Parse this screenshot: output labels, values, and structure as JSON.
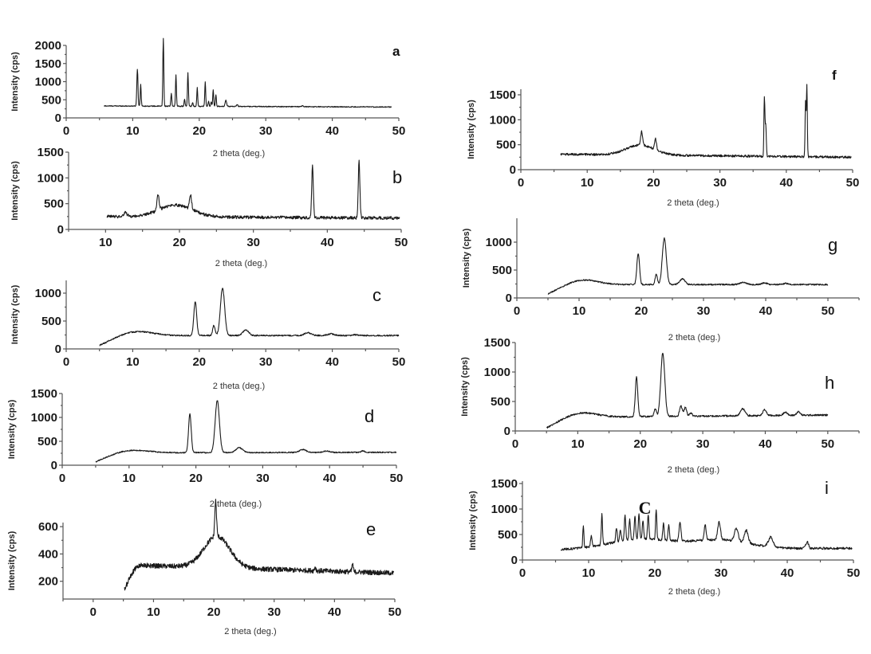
{
  "chart_data": [
    {
      "id": "a",
      "type": "line",
      "panel_label": "a",
      "xlabel": "2 theta (deg.)",
      "ylabel": "Intensity (cps)",
      "xlim": [
        0,
        50
      ],
      "ylim": [
        0,
        2000
      ],
      "xticks": [
        0,
        10,
        20,
        30,
        40,
        50
      ],
      "yticks": [
        0,
        500,
        1000,
        1500,
        2000
      ],
      "baseline": 330,
      "x_start": 5.7,
      "x_end": 48.9,
      "baseline_end": 300,
      "noise": 12,
      "peaks": [
        [
          10.7,
          1350,
          0.12
        ],
        [
          11.2,
          930,
          0.1
        ],
        [
          14.6,
          2200,
          0.1
        ],
        [
          15.8,
          680,
          0.1
        ],
        [
          16.5,
          1200,
          0.1
        ],
        [
          17.8,
          520,
          0.1
        ],
        [
          18.3,
          1260,
          0.1
        ],
        [
          19.0,
          430,
          0.1
        ],
        [
          19.7,
          840,
          0.1
        ],
        [
          20.9,
          1000,
          0.1
        ],
        [
          21.4,
          480,
          0.1
        ],
        [
          21.8,
          450,
          0.1
        ],
        [
          22.1,
          780,
          0.1
        ],
        [
          22.5,
          640,
          0.1
        ],
        [
          24.0,
          500,
          0.15
        ],
        [
          25.7,
          380,
          0.15
        ],
        [
          35.5,
          350,
          0.2
        ]
      ],
      "humps": []
    },
    {
      "id": "b",
      "type": "line",
      "panel_label": "b",
      "xlabel": "2 theta (deg.)",
      "ylabel": "Intensity (cps)",
      "xlim": [
        5,
        50
      ],
      "ylim": [
        0,
        1500
      ],
      "xticks": [
        10,
        20,
        30,
        40,
        50
      ],
      "yticks": [
        0,
        500,
        1000,
        1500
      ],
      "baseline": 250,
      "x_start": 10.2,
      "x_end": 49.8,
      "baseline_end": 220,
      "noise": 30,
      "peaks": [
        [
          38.0,
          1270,
          0.15
        ],
        [
          44.3,
          1370,
          0.15
        ],
        [
          17.1,
          560,
          0.2
        ],
        [
          21.5,
          520,
          0.2
        ],
        [
          12.7,
          330,
          0.3
        ]
      ],
      "humps": [
        [
          19.5,
          230,
          3.2
        ]
      ]
    },
    {
      "id": "c",
      "type": "line",
      "panel_label": "c",
      "xlabel": "2 theta (deg.)",
      "ylabel": "Intensity (cps)",
      "xlim": [
        0,
        50
      ],
      "ylim": [
        0,
        1200
      ],
      "xticks": [
        0,
        10,
        20,
        30,
        40,
        50
      ],
      "yticks": [
        0,
        500,
        1000
      ],
      "baseline": 240,
      "x_start": 5.0,
      "x_end": 50.0,
      "baseline_end": 240,
      "noise": 12,
      "start_value": 60,
      "rise_to": 10,
      "peaks": [
        [
          19.4,
          850,
          0.3
        ],
        [
          22.2,
          420,
          0.25
        ],
        [
          23.5,
          1090,
          0.45
        ],
        [
          27.0,
          340,
          0.6
        ],
        [
          36.3,
          290,
          0.7
        ],
        [
          39.8,
          270,
          0.7
        ],
        [
          43.4,
          255,
          0.6
        ]
      ],
      "humps": [
        [
          11.0,
          70,
          3.0
        ]
      ]
    },
    {
      "id": "d",
      "type": "line",
      "panel_label": "d",
      "xlabel": "2 theta (deg.)",
      "ylabel": "Intensity (cps)",
      "xlim": [
        0,
        50
      ],
      "ylim": [
        0,
        1500
      ],
      "xticks": [
        0,
        10,
        20,
        30,
        40,
        50
      ],
      "yticks": [
        0,
        500,
        1000,
        1500
      ],
      "baseline": 260,
      "x_start": 5.0,
      "x_end": 50.0,
      "baseline_end": 270,
      "noise": 12,
      "start_value": 70,
      "rise_to": 10,
      "peaks": [
        [
          19.1,
          1070,
          0.28
        ],
        [
          23.2,
          1350,
          0.45
        ],
        [
          26.5,
          360,
          0.7
        ],
        [
          36.0,
          320,
          0.7
        ],
        [
          39.6,
          290,
          0.6
        ],
        [
          45.0,
          290,
          0.4
        ]
      ],
      "humps": [
        [
          11.0,
          50,
          3.0
        ]
      ]
    },
    {
      "id": "e",
      "type": "line",
      "panel_label": "e",
      "xlabel": "2 theta (deg.)",
      "ylabel": "Intensity (cps)",
      "xlim": [
        -5,
        50
      ],
      "ylim": [
        70,
        630
      ],
      "xticks": [
        0,
        10,
        20,
        30,
        40,
        50
      ],
      "yticks": [
        200,
        400,
        600
      ],
      "baseline": 320,
      "x_start": 5.2,
      "x_end": 49.8,
      "baseline_end": 260,
      "noise": 18,
      "start_value": 140,
      "rise_to": 8,
      "peaks": [
        [
          20.3,
          580,
          0.2
        ],
        [
          36.8,
          350,
          0.15
        ],
        [
          43.0,
          380,
          0.15
        ]
      ],
      "humps": [
        [
          20.5,
          230,
          3.0
        ]
      ]
    },
    {
      "id": "f",
      "type": "line",
      "panel_label": "f",
      "xlabel": "2 theta (deg.)",
      "ylabel": "Intensity (cps)",
      "xlim": [
        0,
        50
      ],
      "ylim": [
        0,
        1500
      ],
      "xticks": [
        0,
        10,
        20,
        30,
        40,
        50
      ],
      "yticks": [
        0,
        500,
        1000,
        1500
      ],
      "baseline": 310,
      "x_start": 6.0,
      "x_end": 49.8,
      "baseline_end": 250,
      "noise": 22,
      "peaks": [
        [
          36.7,
          1480,
          0.1
        ],
        [
          36.9,
          950,
          0.12
        ],
        [
          42.9,
          1400,
          0.1
        ],
        [
          43.1,
          1720,
          0.1
        ],
        [
          18.2,
          580,
          0.2
        ],
        [
          20.3,
          530,
          0.2
        ]
      ],
      "humps": [
        [
          18.0,
          200,
          3.0
        ]
      ]
    },
    {
      "id": "g",
      "type": "line",
      "panel_label": "g",
      "xlabel": "2 theta (deg.)",
      "ylabel": "Intensity (cps)",
      "xlim": [
        0,
        55
      ],
      "ylim": [
        0,
        1200
      ],
      "xticks": [
        0,
        10,
        20,
        30,
        40,
        50
      ],
      "yticks": [
        0,
        500,
        1000
      ],
      "baseline": 240,
      "x_start": 5.0,
      "x_end": 50.0,
      "baseline_end": 240,
      "noise": 12,
      "start_value": 70,
      "rise_to": 10,
      "peaks": [
        [
          19.5,
          800,
          0.3
        ],
        [
          22.4,
          430,
          0.25
        ],
        [
          23.7,
          1070,
          0.45
        ],
        [
          26.6,
          340,
          0.6
        ],
        [
          36.4,
          280,
          0.7
        ],
        [
          39.8,
          270,
          0.6
        ],
        [
          43.2,
          260,
          0.5
        ]
      ],
      "humps": [
        [
          11.0,
          80,
          3.0
        ]
      ]
    },
    {
      "id": "h",
      "type": "line",
      "panel_label": "h",
      "xlabel": "2 theta (deg.)",
      "ylabel": "Intensity (cps)",
      "xlim": [
        0,
        55
      ],
      "ylim": [
        0,
        1500
      ],
      "xticks": [
        0,
        10,
        20,
        30,
        40,
        50
      ],
      "yticks": [
        0,
        500,
        1000,
        1500
      ],
      "baseline": 230,
      "x_start": 5.0,
      "x_end": 50.0,
      "baseline_end": 270,
      "noise": 14,
      "start_value": 50,
      "rise_to": 10,
      "peaks": [
        [
          19.4,
          900,
          0.28
        ],
        [
          22.4,
          360,
          0.25
        ],
        [
          23.6,
          1310,
          0.45
        ],
        [
          26.5,
          400,
          0.3
        ],
        [
          27.2,
          380,
          0.3
        ],
        [
          28.1,
          280,
          0.3
        ],
        [
          36.4,
          350,
          0.5
        ],
        [
          39.9,
          330,
          0.4
        ],
        [
          43.2,
          290,
          0.4
        ],
        [
          45.3,
          290,
          0.4
        ]
      ],
      "humps": [
        [
          11.0,
          70,
          3.0
        ]
      ]
    },
    {
      "id": "i",
      "type": "line",
      "panel_label": "i",
      "xlabel": "2 theta (deg.)",
      "ylabel": "Intensity (cps)",
      "annotation": "C",
      "xlim": [
        0,
        50
      ],
      "ylim": [
        0,
        1500
      ],
      "xticks": [
        0,
        10,
        20,
        30,
        40,
        50
      ],
      "yticks": [
        0,
        500,
        1000,
        1500
      ],
      "baseline": 200,
      "x_start": 5.8,
      "x_end": 49.8,
      "baseline_end": 230,
      "noise": 22,
      "peaks": [
        [
          9.2,
          610,
          0.12
        ],
        [
          10.4,
          420,
          0.15
        ],
        [
          12.0,
          800,
          0.13
        ],
        [
          14.2,
          480,
          0.15
        ],
        [
          14.8,
          430,
          0.15
        ],
        [
          15.5,
          690,
          0.15
        ],
        [
          16.2,
          600,
          0.15
        ],
        [
          17.0,
          660,
          0.15
        ],
        [
          17.6,
          700,
          0.15
        ],
        [
          18.2,
          560,
          0.15
        ],
        [
          19.0,
          680,
          0.15
        ],
        [
          20.2,
          790,
          0.13
        ],
        [
          21.3,
          520,
          0.15
        ],
        [
          22.1,
          500,
          0.15
        ],
        [
          23.8,
          580,
          0.2
        ],
        [
          27.6,
          500,
          0.2
        ],
        [
          29.7,
          540,
          0.3
        ],
        [
          32.3,
          450,
          0.4
        ],
        [
          33.8,
          450,
          0.4
        ],
        [
          37.5,
          390,
          0.5
        ],
        [
          43.0,
          330,
          0.3
        ]
      ],
      "humps": [
        [
          18.0,
          200,
          7.0
        ],
        [
          30.0,
          170,
          6.0
        ]
      ]
    }
  ]
}
